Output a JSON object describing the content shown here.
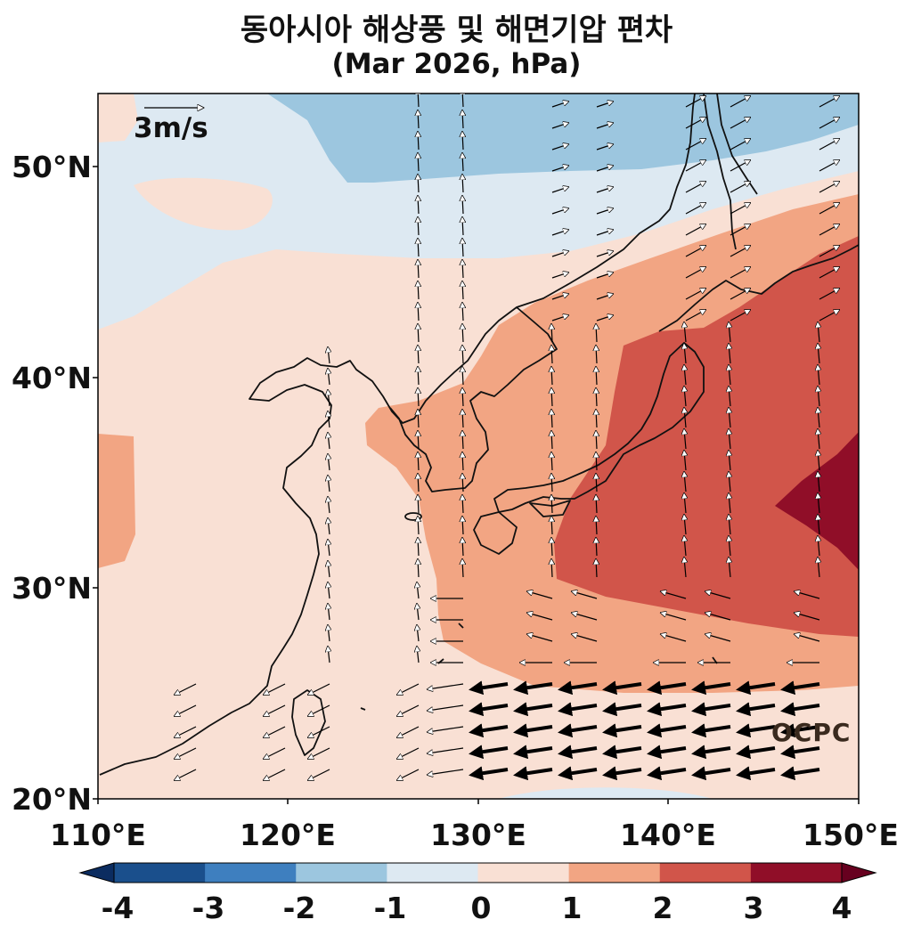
{
  "title": "동아시아 해상풍 및 해면기압 편차",
  "subtitle": "(Mar 2026, hPa)",
  "reference_vector_label": "3m/s",
  "watermark": "OCPC",
  "axes": {
    "lon_labels": [
      "110°E",
      "120°E",
      "130°E",
      "140°E",
      "150°E"
    ],
    "lat_labels": [
      "50°N",
      "40°N",
      "30°N",
      "20°N"
    ],
    "lon_range": [
      110,
      150
    ],
    "lat_range": [
      20,
      53.5
    ]
  },
  "colorbar": {
    "ticks": [
      "-4",
      "-3",
      "-2",
      "-1",
      "0",
      "1",
      "2",
      "3",
      "4"
    ],
    "colors": [
      "#1a4f8c",
      "#3e7fbf",
      "#9cc6df",
      "#dde9f2",
      "#f9e0d4",
      "#f2a583",
      "#d1554a",
      "#900e28"
    ],
    "extend_low": "#0b2c60",
    "extend_high": "#67001f"
  }
}
